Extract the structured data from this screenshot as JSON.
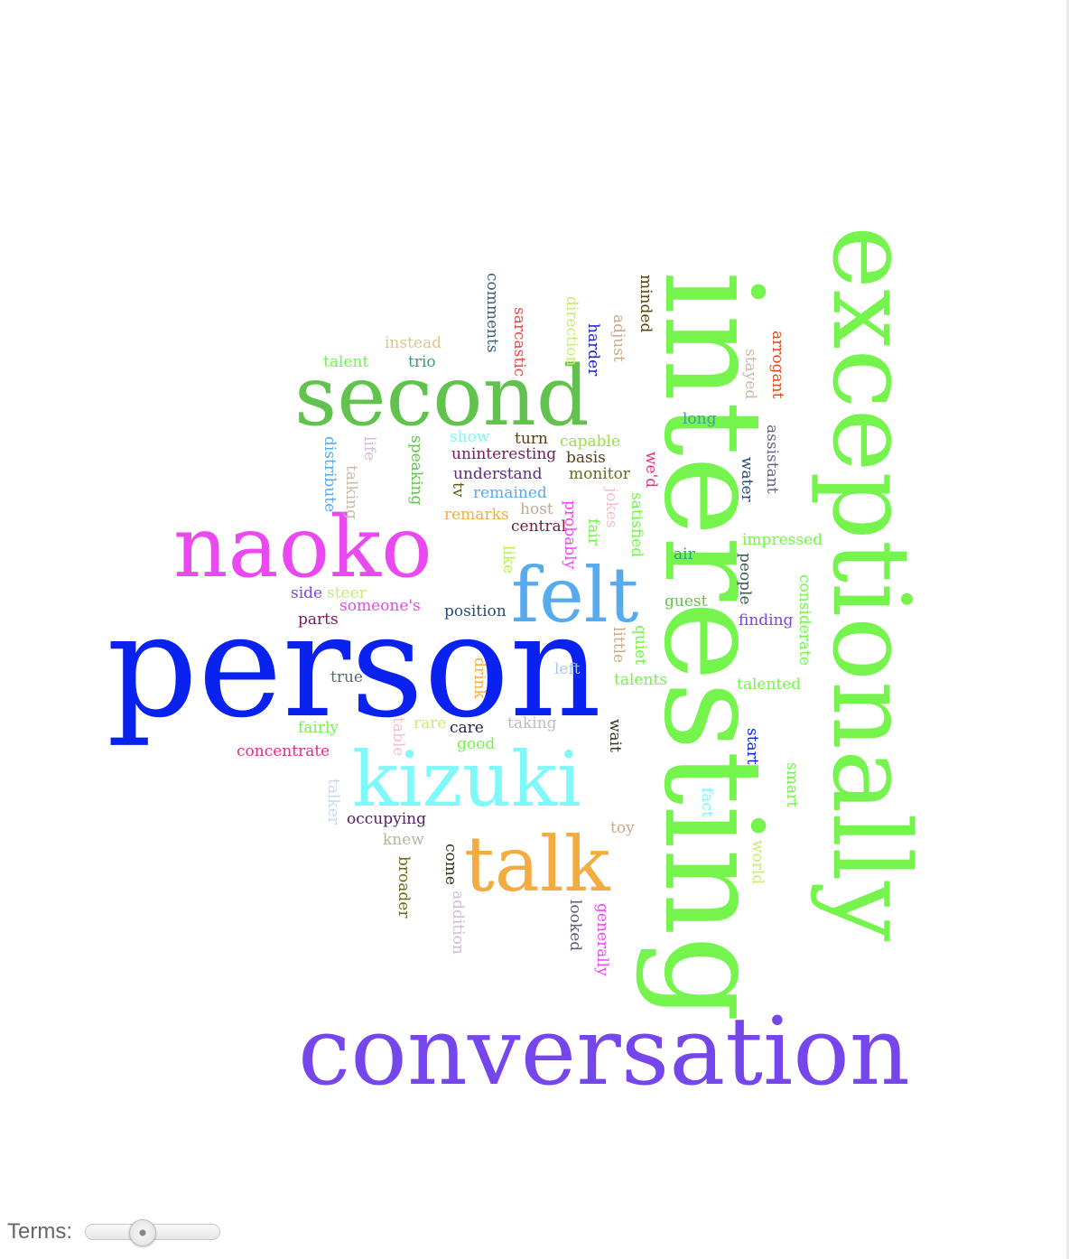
{
  "controls": {
    "terms_label": "Terms:",
    "terms_slider_fraction": 0.4
  },
  "words": [
    {
      "text": "person",
      "color": "#0a22f0"
    },
    {
      "text": "interesting",
      "color": "#74f44c"
    },
    {
      "text": "exceptionally",
      "color": "#74f44c"
    },
    {
      "text": "conversation",
      "color": "#7446ec"
    },
    {
      "text": "second",
      "color": "#62c24e"
    },
    {
      "text": "naoko",
      "color": "#ea48f0"
    },
    {
      "text": "kizuki",
      "color": "#7ef8f8"
    },
    {
      "text": "felt",
      "color": "#56aaf0"
    },
    {
      "text": "talk",
      "color": "#f2ac42"
    },
    {
      "text": "comments",
      "color": "#40607a"
    },
    {
      "text": "sarcastic",
      "color": "#e04a4a"
    },
    {
      "text": "direction",
      "color": "#c9ea7a"
    },
    {
      "text": "harder",
      "color": "#1a20d4"
    },
    {
      "text": "adjust",
      "color": "#cba888"
    },
    {
      "text": "minded",
      "color": "#5a4010"
    },
    {
      "text": "arrogant",
      "color": "#e2481c"
    },
    {
      "text": "stayed",
      "color": "#cbb8a8"
    },
    {
      "text": "instead",
      "color": "#dcc590"
    },
    {
      "text": "talent",
      "color": "#74f44c"
    },
    {
      "text": "trio",
      "color": "#3a9a8a"
    },
    {
      "text": "long",
      "color": "#4a9aa2"
    },
    {
      "text": "assistant",
      "color": "#626282"
    },
    {
      "text": "show",
      "color": "#7ef8f8"
    },
    {
      "text": "turn",
      "color": "#5a4012"
    },
    {
      "text": "capable",
      "color": "#9eda4e"
    },
    {
      "text": "distribute",
      "color": "#56aaf0"
    },
    {
      "text": "life",
      "color": "#d0bcd8"
    },
    {
      "text": "speaking",
      "color": "#62c24e"
    },
    {
      "text": "uninteresting",
      "color": "#7a1a5a"
    },
    {
      "text": "basis",
      "color": "#5a4012"
    },
    {
      "text": "water",
      "color": "#2a4a7a"
    },
    {
      "text": "understand",
      "color": "#5a2a8a"
    },
    {
      "text": "monitor",
      "color": "#6a6a1a"
    },
    {
      "text": "we'd",
      "color": "#e03080"
    },
    {
      "text": "talking",
      "color": "#cbb8a8"
    },
    {
      "text": "tv",
      "color": "#5a5a12"
    },
    {
      "text": "remained",
      "color": "#56aaf0"
    },
    {
      "text": "jokes",
      "color": "#f2c0c8"
    },
    {
      "text": "satisfied",
      "color": "#74f44c"
    },
    {
      "text": "host",
      "color": "#bdaa98"
    },
    {
      "text": "remarks",
      "color": "#f2ac42"
    },
    {
      "text": "probably",
      "color": "#ea48f0"
    },
    {
      "text": "central",
      "color": "#7a1a3a"
    },
    {
      "text": "fair",
      "color": "#74f44c"
    },
    {
      "text": "like",
      "color": "#b8ee58"
    },
    {
      "text": "air",
      "color": "#3a9a8a"
    },
    {
      "text": "impressed",
      "color": "#74f44c"
    },
    {
      "text": "people",
      "color": "#3a5a4a"
    },
    {
      "text": "considerate",
      "color": "#74f44c"
    },
    {
      "text": "side",
      "color": "#7446ec"
    },
    {
      "text": "steer",
      "color": "#c9ea7a"
    },
    {
      "text": "someone's",
      "color": "#ea48f0"
    },
    {
      "text": "guest",
      "color": "#62c24e"
    },
    {
      "text": "position",
      "color": "#2a4a7a"
    },
    {
      "text": "parts",
      "color": "#7a1a5a"
    },
    {
      "text": "finding",
      "color": "#7446ec"
    },
    {
      "text": "little",
      "color": "#cba888"
    },
    {
      "text": "quiet",
      "color": "#74f44c"
    },
    {
      "text": "true",
      "color": "#5a6a6a"
    },
    {
      "text": "drink",
      "color": "#f2ac42"
    },
    {
      "text": "left",
      "color": "#a8c8e8"
    },
    {
      "text": "talents",
      "color": "#74f44c"
    },
    {
      "text": "talented",
      "color": "#74f44c"
    },
    {
      "text": "fairly",
      "color": "#74f44c"
    },
    {
      "text": "table",
      "color": "#f2c0c8"
    },
    {
      "text": "rare",
      "color": "#c9ea7a"
    },
    {
      "text": "care",
      "color": "#2a1a4a"
    },
    {
      "text": "taking",
      "color": "#bdbdbd"
    },
    {
      "text": "wait",
      "color": "#2a3a1a"
    },
    {
      "text": "good",
      "color": "#74f44c"
    },
    {
      "text": "start",
      "color": "#0a22f0"
    },
    {
      "text": "concentrate",
      "color": "#e03080"
    },
    {
      "text": "smart",
      "color": "#74f44c"
    },
    {
      "text": "talker",
      "color": "#c8d8e8"
    },
    {
      "text": "fact",
      "color": "#7ef8f8"
    },
    {
      "text": "occupying",
      "color": "#5a1a6a"
    },
    {
      "text": "toy",
      "color": "#cba888"
    },
    {
      "text": "knew",
      "color": "#b0b8a0"
    },
    {
      "text": "world",
      "color": "#c9ea7a"
    },
    {
      "text": "come",
      "color": "#2a3a1a"
    },
    {
      "text": "broader",
      "color": "#6a6a1a"
    },
    {
      "text": "addition",
      "color": "#d0bcd8"
    },
    {
      "text": "looked",
      "color": "#5a5a7a"
    },
    {
      "text": "generally",
      "color": "#ea48f0"
    }
  ]
}
